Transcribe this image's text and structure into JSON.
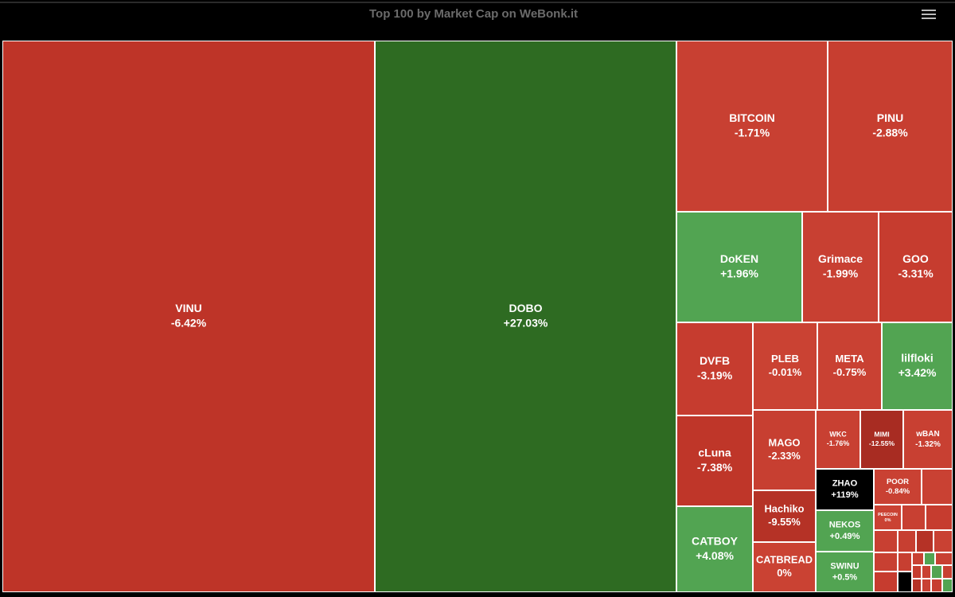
{
  "header": {
    "title": "Top 100 by Market Cap on WeBonk.it"
  },
  "tiles": [
    {
      "name": "VINU",
      "change": "-6.42%",
      "color": "#be3428"
    },
    {
      "name": "DOBO",
      "change": "+27.03%",
      "color": "#2e6b22"
    },
    {
      "name": "BITCOIN",
      "change": "-1.71%",
      "color": "#c84032"
    },
    {
      "name": "PINU",
      "change": "-2.88%",
      "color": "#c73e30"
    },
    {
      "name": "DoKEN",
      "change": "+1.96%",
      "color": "#52a452"
    },
    {
      "name": "Grimace",
      "change": "-1.99%",
      "color": "#c84032"
    },
    {
      "name": "GOO",
      "change": "-3.31%",
      "color": "#c63c2f"
    },
    {
      "name": "DVFB",
      "change": "-3.19%",
      "color": "#c63c2f"
    },
    {
      "name": "PLEB",
      "change": "-0.01%",
      "color": "#ca4233"
    },
    {
      "name": "META",
      "change": "-0.75%",
      "color": "#c94133"
    },
    {
      "name": "lilfloki",
      "change": "+3.42%",
      "color": "#52a452"
    },
    {
      "name": "cLuna",
      "change": "-7.38%",
      "color": "#bf3629"
    },
    {
      "name": "CATBOY",
      "change": "+4.08%",
      "color": "#52a452"
    },
    {
      "name": "MAGO",
      "change": "-2.33%",
      "color": "#c73f31"
    },
    {
      "name": "Hachiko",
      "change": "-9.55%",
      "color": "#b53226"
    },
    {
      "name": "CATBREAD",
      "change": "0%",
      "color": "#ca4233"
    },
    {
      "name": "WKC",
      "change": "-1.76%",
      "color": "#c84032"
    },
    {
      "name": "MIMI",
      "change": "-12.55%",
      "color": "#a82c22"
    },
    {
      "name": "wBAN",
      "change": "-1.32%",
      "color": "#c84032"
    },
    {
      "name": "ZHAO",
      "change": "+119%",
      "color": "#000000"
    },
    {
      "name": "NEKOS",
      "change": "+0.49%",
      "color": "#52a452"
    },
    {
      "name": "SWINU",
      "change": "+0.5%",
      "color": "#52a452"
    },
    {
      "name": "POOR",
      "change": "-0.84%",
      "color": "#c94133"
    },
    {
      "name": "PEECOIN",
      "change": "0%",
      "color": "#ca4233"
    }
  ]
}
